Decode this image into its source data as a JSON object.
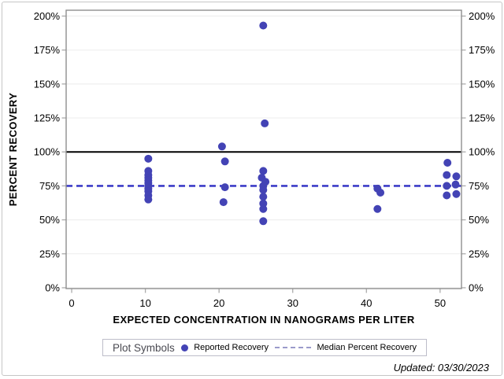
{
  "figure": {
    "footer_text": "Updated: 03/30/2023"
  },
  "chart_data": {
    "type": "scatter",
    "title": "",
    "xlabel": "EXPECTED CONCENTRATION IN NANOGRAMS PER LITER",
    "ylabel": "PERCENT RECOVERY",
    "xlim": [
      -0.75,
      52.9
    ],
    "ylim": [
      -0.6,
      204.3
    ],
    "xticks": [
      0,
      10,
      20,
      30,
      40,
      50
    ],
    "yticks": [
      0,
      25,
      50,
      75,
      100,
      125,
      150,
      175,
      200
    ],
    "ytick_suffix": "%",
    "grid": "horizontal",
    "legend_position": "bottom",
    "marker_color": "#4343b5",
    "gridline_color": "#f0f0f0",
    "axis_color": "#8f8f8f",
    "tick_color": "#ababab",
    "series": [
      {
        "name": "Reported Recovery",
        "points": [
          [
            10.4,
            95
          ],
          [
            10.4,
            86
          ],
          [
            10.4,
            83
          ],
          [
            10.4,
            81
          ],
          [
            10.4,
            79
          ],
          [
            10.4,
            77
          ],
          [
            10.4,
            75
          ],
          [
            10.4,
            73
          ],
          [
            10.4,
            71
          ],
          [
            10.4,
            68
          ],
          [
            10.4,
            65
          ],
          [
            20.4,
            104
          ],
          [
            20.8,
            93
          ],
          [
            20.8,
            74
          ],
          [
            20.6,
            63
          ],
          [
            26.0,
            193
          ],
          [
            26.2,
            121
          ],
          [
            26.0,
            86
          ],
          [
            25.8,
            81
          ],
          [
            26.3,
            78
          ],
          [
            26.0,
            75
          ],
          [
            26.0,
            72
          ],
          [
            26.0,
            67
          ],
          [
            26.0,
            62
          ],
          [
            26.0,
            58
          ],
          [
            26.0,
            49
          ],
          [
            41.5,
            73
          ],
          [
            41.9,
            70
          ],
          [
            41.5,
            58
          ],
          [
            51.0,
            92
          ],
          [
            50.9,
            83
          ],
          [
            52.2,
            82
          ],
          [
            52.1,
            76
          ],
          [
            50.9,
            75
          ],
          [
            52.2,
            69
          ],
          [
            50.9,
            68
          ]
        ]
      }
    ],
    "reference_lines": [
      {
        "y": 100,
        "style": "solid",
        "color": "#000000",
        "width": 2
      },
      {
        "y": 75,
        "style": "dashed",
        "color": "#3c3cc8",
        "width": 2.6
      }
    ],
    "legend": {
      "title": "Plot Symbols",
      "items": [
        {
          "symbol": "dot",
          "label": "Reported Recovery"
        },
        {
          "symbol": "dashed-line",
          "label": "Median Percent Recovery"
        }
      ]
    }
  }
}
